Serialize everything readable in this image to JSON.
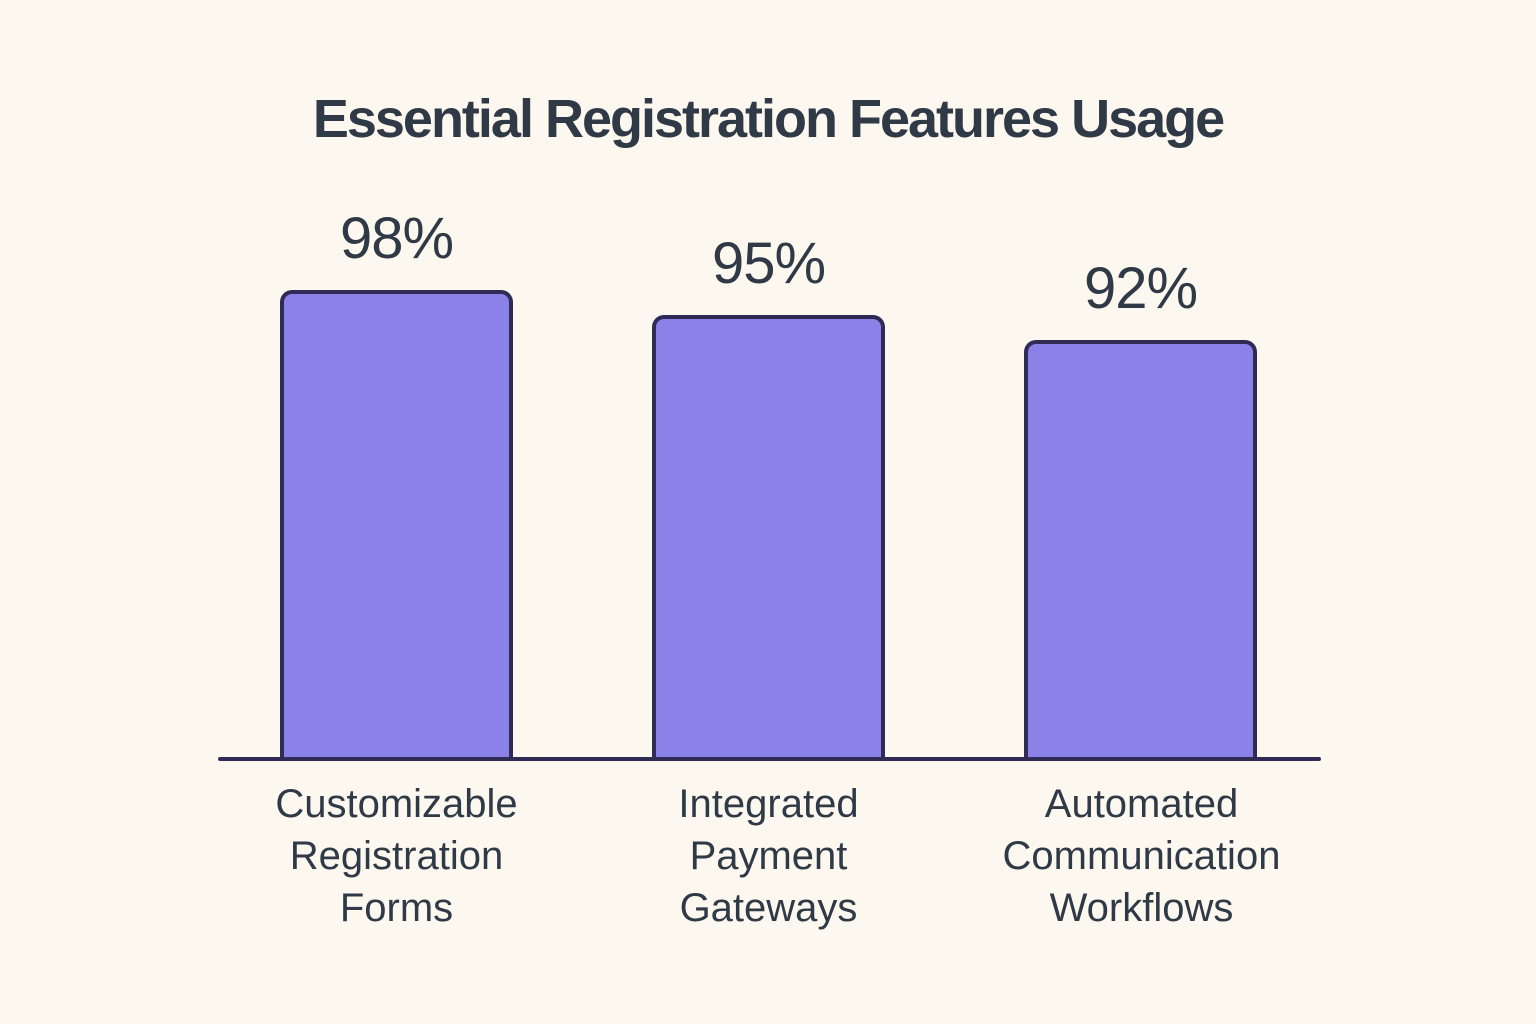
{
  "chart_data": {
    "type": "bar",
    "title": "Essential Registration Features Usage",
    "categories": [
      "Customizable Registration Forms",
      "Integrated Payment Gateways",
      "Automated Communication Workflows"
    ],
    "categories_wrapped": [
      "Customizable\nRegistration\nForms",
      "Integrated\nPayment\nGateways",
      "Automated\nCommunication\nWorkflows"
    ],
    "values": [
      98,
      95,
      92
    ],
    "value_labels": [
      "98%",
      "95%",
      "92%"
    ],
    "xlabel": "",
    "ylabel": "",
    "ylim": [
      42,
      100
    ],
    "grid": false,
    "legend": false,
    "colors": {
      "bar_fill": "#8B82E9",
      "bar_border": "#2F2B55",
      "axis_line": "#2F2B55",
      "text": "#2F3A46",
      "background": "#FCF8F0"
    }
  }
}
